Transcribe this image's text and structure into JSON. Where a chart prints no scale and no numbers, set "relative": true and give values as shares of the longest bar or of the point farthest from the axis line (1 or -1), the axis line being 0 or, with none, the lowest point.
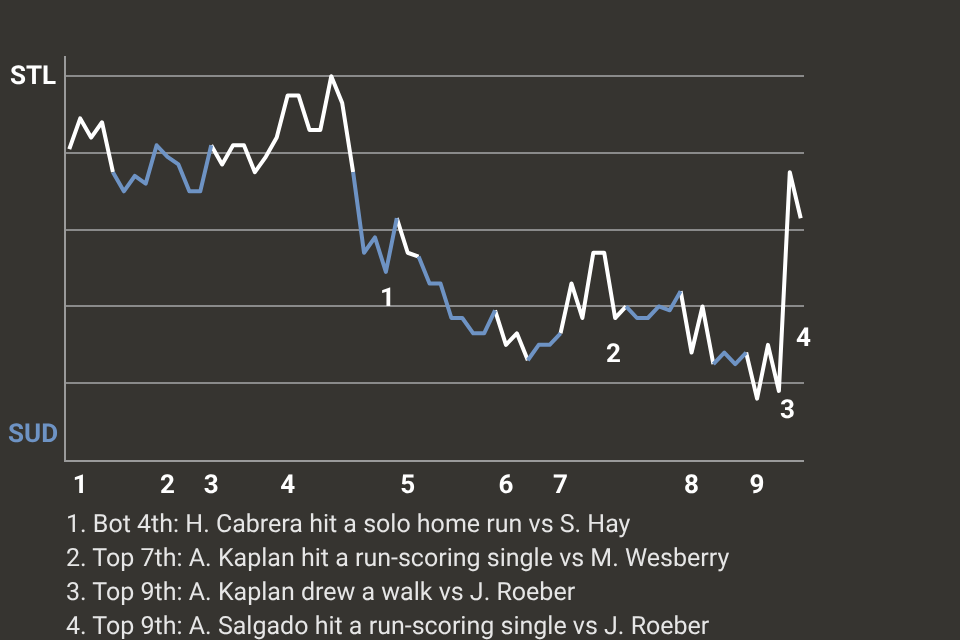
{
  "chart_data": {
    "type": "line",
    "relative": true,
    "categories": [
      null,
      "1",
      null,
      null,
      null,
      null,
      null,
      null,
      null,
      "2",
      null,
      null,
      null,
      "3",
      null,
      null,
      null,
      null,
      null,
      null,
      "4",
      null,
      null,
      null,
      null,
      null,
      null,
      null,
      null,
      null,
      null,
      "5",
      null,
      null,
      null,
      null,
      null,
      null,
      null,
      null,
      "6",
      null,
      null,
      null,
      null,
      "7",
      null,
      null,
      null,
      null,
      null,
      null,
      null,
      null,
      null,
      null,
      null,
      "8",
      null,
      null,
      null,
      null,
      null,
      "9",
      null,
      null,
      null,
      null
    ],
    "series": [
      {
        "color": "#ffffff",
        "values": [
          0.81,
          0.89,
          0.84,
          0.88,
          0.75,
          null,
          null,
          null,
          null,
          null,
          null,
          null,
          null,
          0.82,
          0.77,
          0.82,
          0.82,
          0.75,
          0.79,
          0.84,
          0.95,
          0.95,
          0.86,
          0.86,
          1,
          0.93,
          0.75,
          null,
          null,
          null,
          0.63,
          0.54,
          0.53,
          null,
          null,
          null,
          null,
          null,
          null,
          0.39,
          0.3,
          0.33,
          0.26,
          null,
          null,
          0.33,
          0.46,
          0.37,
          0.54,
          0.54,
          0.37,
          0.4,
          null,
          null,
          null,
          null,
          0.44,
          0.28,
          0.4,
          0.25,
          null,
          null,
          0.28,
          0.16,
          0.3,
          0.18,
          0.75,
          0.63
        ]
      },
      {
        "color": "#6e93c4",
        "values": [
          null,
          null,
          null,
          null,
          0.75,
          0.7,
          0.74,
          0.72,
          0.82,
          0.79,
          0.77,
          0.7,
          0.7,
          0.82,
          null,
          null,
          null,
          null,
          null,
          null,
          null,
          null,
          null,
          null,
          null,
          null,
          0.75,
          0.54,
          0.58,
          0.49,
          0.63,
          null,
          0.53,
          0.46,
          0.46,
          0.37,
          0.37,
          0.33,
          0.33,
          0.39,
          null,
          null,
          0.26,
          0.3,
          0.3,
          0.33,
          null,
          null,
          null,
          null,
          null,
          0.4,
          0.37,
          0.37,
          0.4,
          0.39,
          0.44,
          null,
          null,
          0.25,
          0.28,
          0.25,
          0.28,
          null,
          null,
          null,
          null,
          null
        ]
      }
    ],
    "grid": "y",
    "marker": "none",
    "line_style": "solid",
    "annotations": [
      "STL",
      "SUD",
      "1",
      "2",
      "3",
      "4",
      "1. Bot 4th: H. Cabrera hit a solo home run vs S. Hay",
      "2. Top 7th: A. Kaplan hit a run-scoring single vs M. Wesberry",
      "3. Top 9th: A. Kaplan drew a walk vs J. Roeber",
      "4. Top 9th: A. Salgado hit a run-scoring single vs J. Roeber"
    ]
  }
}
